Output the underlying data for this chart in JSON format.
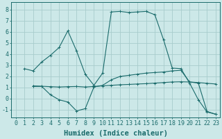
{
  "xlabel": "Humidex (Indice chaleur)",
  "xlim": [
    -0.5,
    23.5
  ],
  "ylim": [
    -1.7,
    8.7
  ],
  "background_color": "#cce8e8",
  "grid_color": "#a8cccc",
  "line_color": "#1a6b6b",
  "line1_x": [
    1,
    2,
    3,
    4,
    5,
    6,
    7,
    8,
    9,
    10,
    11,
    12,
    13,
    14,
    15,
    16,
    17,
    18,
    19,
    20,
    21,
    22,
    23
  ],
  "line1_y": [
    2.7,
    2.5,
    3.3,
    3.9,
    4.6,
    6.1,
    4.3,
    2.2,
    1.2,
    2.3,
    7.8,
    7.85,
    7.75,
    7.8,
    7.85,
    7.55,
    5.3,
    2.75,
    2.7,
    1.4,
    -0.1,
    -1.2,
    -1.4
  ],
  "line2_x": [
    2,
    3,
    4,
    5,
    6,
    7,
    8,
    9,
    10,
    11,
    12,
    13,
    14,
    15,
    16,
    17,
    18,
    19,
    20,
    21,
    22,
    23
  ],
  "line2_y": [
    1.1,
    1.1,
    0.35,
    -0.1,
    -0.3,
    -1.1,
    -0.9,
    1.05,
    1.2,
    1.7,
    2.0,
    2.1,
    2.2,
    2.3,
    2.35,
    2.4,
    2.5,
    2.55,
    1.5,
    1.4,
    -1.15,
    -1.4
  ],
  "line3_x": [
    2,
    3,
    4,
    5,
    6,
    7,
    8,
    9,
    10,
    11,
    12,
    13,
    14,
    15,
    16,
    17,
    18,
    19,
    20,
    21,
    22,
    23
  ],
  "line3_y": [
    1.15,
    1.12,
    1.08,
    1.05,
    1.08,
    1.1,
    1.05,
    1.1,
    1.15,
    1.2,
    1.25,
    1.28,
    1.32,
    1.35,
    1.4,
    1.45,
    1.5,
    1.52,
    1.5,
    1.45,
    1.38,
    1.32
  ],
  "ytick_values": [
    -1,
    0,
    1,
    2,
    3,
    4,
    5,
    6,
    7,
    8
  ],
  "fontsize_xlabel": 7.5,
  "fontsize_ticks": 6.0
}
